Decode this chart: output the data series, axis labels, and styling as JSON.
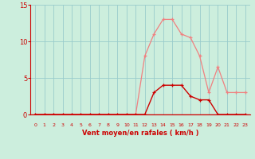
{
  "x": [
    0,
    1,
    2,
    3,
    4,
    5,
    6,
    7,
    8,
    9,
    10,
    11,
    12,
    13,
    14,
    15,
    16,
    17,
    18,
    19,
    20,
    21,
    22,
    23
  ],
  "rafales": [
    0,
    0,
    0,
    0,
    0,
    0,
    0,
    0,
    0,
    0,
    0,
    0,
    8,
    11,
    13,
    13,
    11,
    10.5,
    8,
    3,
    6.5,
    3,
    3,
    3
  ],
  "vent_moyen": [
    0,
    0,
    0,
    0,
    0,
    0,
    0,
    0,
    0,
    0,
    0,
    0,
    0,
    3,
    4,
    4,
    4,
    2.5,
    2,
    2,
    0,
    0,
    0,
    0
  ],
  "xlim_min": -0.5,
  "xlim_max": 23.5,
  "ylim_min": 0,
  "ylim_max": 15,
  "yticks": [
    0,
    5,
    10,
    15
  ],
  "xticks": [
    0,
    1,
    2,
    3,
    4,
    5,
    6,
    7,
    8,
    9,
    10,
    11,
    12,
    13,
    14,
    15,
    16,
    17,
    18,
    19,
    20,
    21,
    22,
    23
  ],
  "xlabel": "Vent moyen/en rafales ( km/h )",
  "rafales_color": "#f08080",
  "vent_moyen_color": "#cc0000",
  "bg_color": "#cceedd",
  "grid_color": "#99cccc",
  "axis_color": "#cc0000",
  "tick_label_color": "#cc0000",
  "xlabel_color": "#cc0000",
  "arrow_color": "#cc0000"
}
